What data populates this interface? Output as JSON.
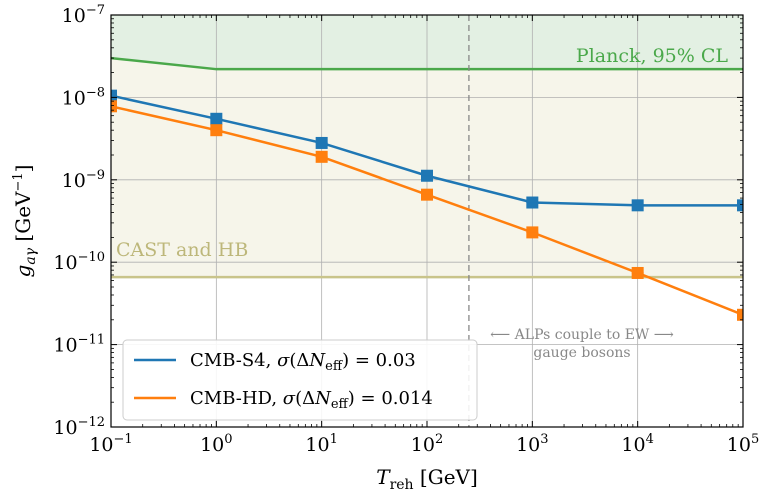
{
  "chart_data": {
    "type": "line",
    "xlabel": "T_reh [GeV]",
    "ylabel": "g_aγ [GeV^-1]",
    "xscale": "log",
    "yscale": "log",
    "xlim": [
      0.1,
      100000
    ],
    "ylim": [
      1e-12,
      1e-07
    ],
    "grid": true,
    "legend_position": "bottom-left",
    "x_ticks": [
      {
        "base": "10",
        "exp": "−1"
      },
      {
        "base": "10",
        "exp": "0"
      },
      {
        "base": "10",
        "exp": "1"
      },
      {
        "base": "10",
        "exp": "2"
      },
      {
        "base": "10",
        "exp": "3"
      },
      {
        "base": "10",
        "exp": "4"
      },
      {
        "base": "10",
        "exp": "5"
      }
    ],
    "y_ticks": [
      {
        "base": "10",
        "exp": "−12"
      },
      {
        "base": "10",
        "exp": "−11"
      },
      {
        "base": "10",
        "exp": "−10"
      },
      {
        "base": "10",
        "exp": "−9"
      },
      {
        "base": "10",
        "exp": "−8"
      },
      {
        "base": "10",
        "exp": "−7"
      }
    ],
    "x": [
      0.1,
      1,
      10,
      100,
      1000,
      10000,
      100000
    ],
    "series": [
      {
        "name": "CMB-S4, σ(ΔN_eff) = 0.03",
        "legend_main": "CMB-S4, ",
        "sigma_value": "0.03",
        "color": "#1f77b4",
        "values": [
          1.05e-08,
          5.5e-09,
          2.8e-09,
          1.12e-09,
          5.3e-10,
          4.9e-10,
          4.9e-10
        ]
      },
      {
        "name": "CMB-HD, σ(ΔN_eff) = 0.014",
        "legend_main": "CMB-HD, ",
        "sigma_value": "0.014",
        "color": "#ff7f0e",
        "values": [
          7.8e-09,
          4e-09,
          1.9e-09,
          6.6e-10,
          2.3e-10,
          7.4e-11,
          2.3e-11
        ]
      }
    ],
    "bounds": [
      {
        "label": "Planck, 95% CL",
        "color": "#4aa84a",
        "fill": "#e3f0e3",
        "x": [
          0.1,
          1,
          100000
        ],
        "values": [
          3e-08,
          2.2e-08,
          2.2e-08
        ]
      },
      {
        "label": "CAST and HB",
        "color": "#c9c48a",
        "fill": "#f6f5ea",
        "x": [
          0.1,
          100000
        ],
        "values": [
          6.6e-11,
          6.6e-11
        ]
      }
    ],
    "ew_threshold": 250,
    "annotation_line1": "⟵ ALPs couple to EW ⟶",
    "annotation_line2": "gauge bosons"
  }
}
